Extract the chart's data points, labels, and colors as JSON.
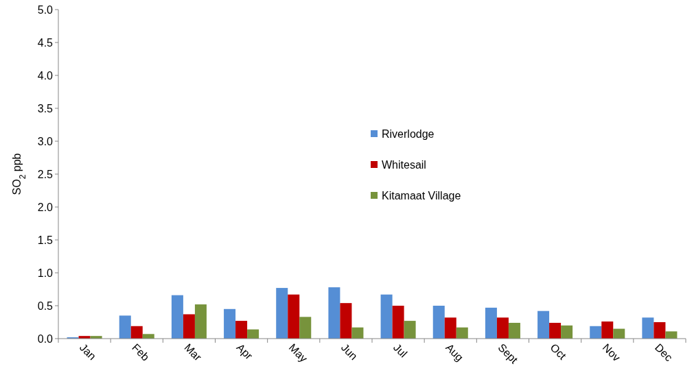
{
  "chart_data": {
    "type": "bar",
    "ylabel": "SO$_{2}$ ppb",
    "categories": [
      "Jan",
      "Feb",
      "Mar",
      "Apr",
      "May",
      "Jun",
      "Jul",
      "Aug",
      "Sept",
      "Oct",
      "Nov",
      "Dec"
    ],
    "series": [
      {
        "name": "Riverlodge",
        "color": "#558ed5",
        "values": [
          0.02,
          0.35,
          0.66,
          0.45,
          0.77,
          0.78,
          0.67,
          0.5,
          0.47,
          0.42,
          0.19,
          0.32
        ]
      },
      {
        "name": "Whitesail",
        "color": "#c00000",
        "values": [
          0.04,
          0.19,
          0.37,
          0.27,
          0.67,
          0.54,
          0.5,
          0.32,
          0.32,
          0.24,
          0.26,
          0.25
        ]
      },
      {
        "name": "Kitamaat Village",
        "color": "#77933c",
        "values": [
          0.04,
          0.07,
          0.52,
          0.14,
          0.33,
          0.17,
          0.27,
          0.17,
          0.24,
          0.2,
          0.15,
          0.11
        ]
      }
    ],
    "ylim": [
      0,
      5
    ],
    "yticks": [
      {
        "value": 0,
        "label": "0.0"
      },
      {
        "value": 0.5,
        "label": "0.5"
      },
      {
        "value": 1,
        "label": "1.0"
      },
      {
        "value": 1.5,
        "label": "1.5"
      },
      {
        "value": 2,
        "label": "2.0"
      },
      {
        "value": 2.5,
        "label": "2.5"
      },
      {
        "value": 3,
        "label": "3.0"
      },
      {
        "value": 3.5,
        "label": "3.5"
      },
      {
        "value": 4,
        "label": "4.0"
      },
      {
        "value": 4.5,
        "label": "4.5"
      },
      {
        "value": 5,
        "label": "5.0"
      }
    ],
    "legend": "center"
  }
}
